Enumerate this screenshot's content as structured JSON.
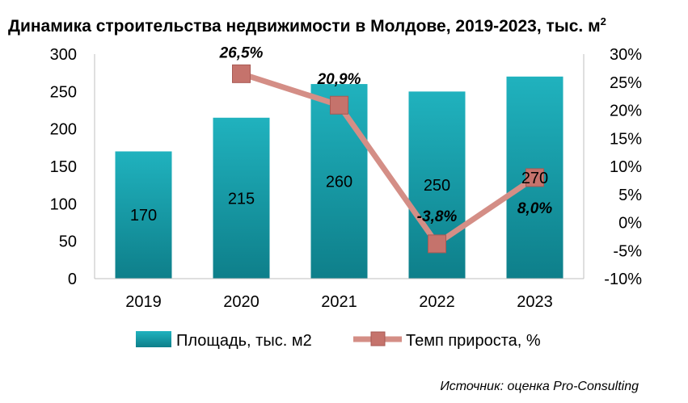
{
  "chart_data": {
    "type": "bar",
    "title": "Динамика строительства недвижимости в Молдове, 2019-2023, тыс. м",
    "title_superscript": "2",
    "categories": [
      "2019",
      "2020",
      "2021",
      "2022",
      "2023"
    ],
    "series": [
      {
        "name": "Площадь, тыс. м2",
        "type": "bar",
        "axis": "left",
        "values": [
          170,
          215,
          260,
          250,
          270
        ],
        "labels": [
          "170",
          "215",
          "260",
          "250",
          "270"
        ],
        "color": "#1aa6b2"
      },
      {
        "name": "Темп прироста, %",
        "type": "line",
        "axis": "right",
        "values": [
          null,
          26.5,
          20.9,
          -3.8,
          8.0
        ],
        "labels": [
          "",
          "26,5%",
          "20,9%",
          "-3,8%",
          "8,0%"
        ],
        "color": "#d48e86"
      }
    ],
    "y_left": {
      "min": 0,
      "max": 300,
      "step": 50,
      "ticks": [
        "0",
        "50",
        "100",
        "150",
        "200",
        "250",
        "300"
      ]
    },
    "y_right": {
      "min": -10,
      "max": 30,
      "step": 5,
      "ticks": [
        "-10%",
        "-5%",
        "0%",
        "5%",
        "10%",
        "15%",
        "20%",
        "25%",
        "30%"
      ]
    },
    "grid": false,
    "legend_position": "bottom",
    "source": "Источник: оценка Pro-Consulting"
  }
}
